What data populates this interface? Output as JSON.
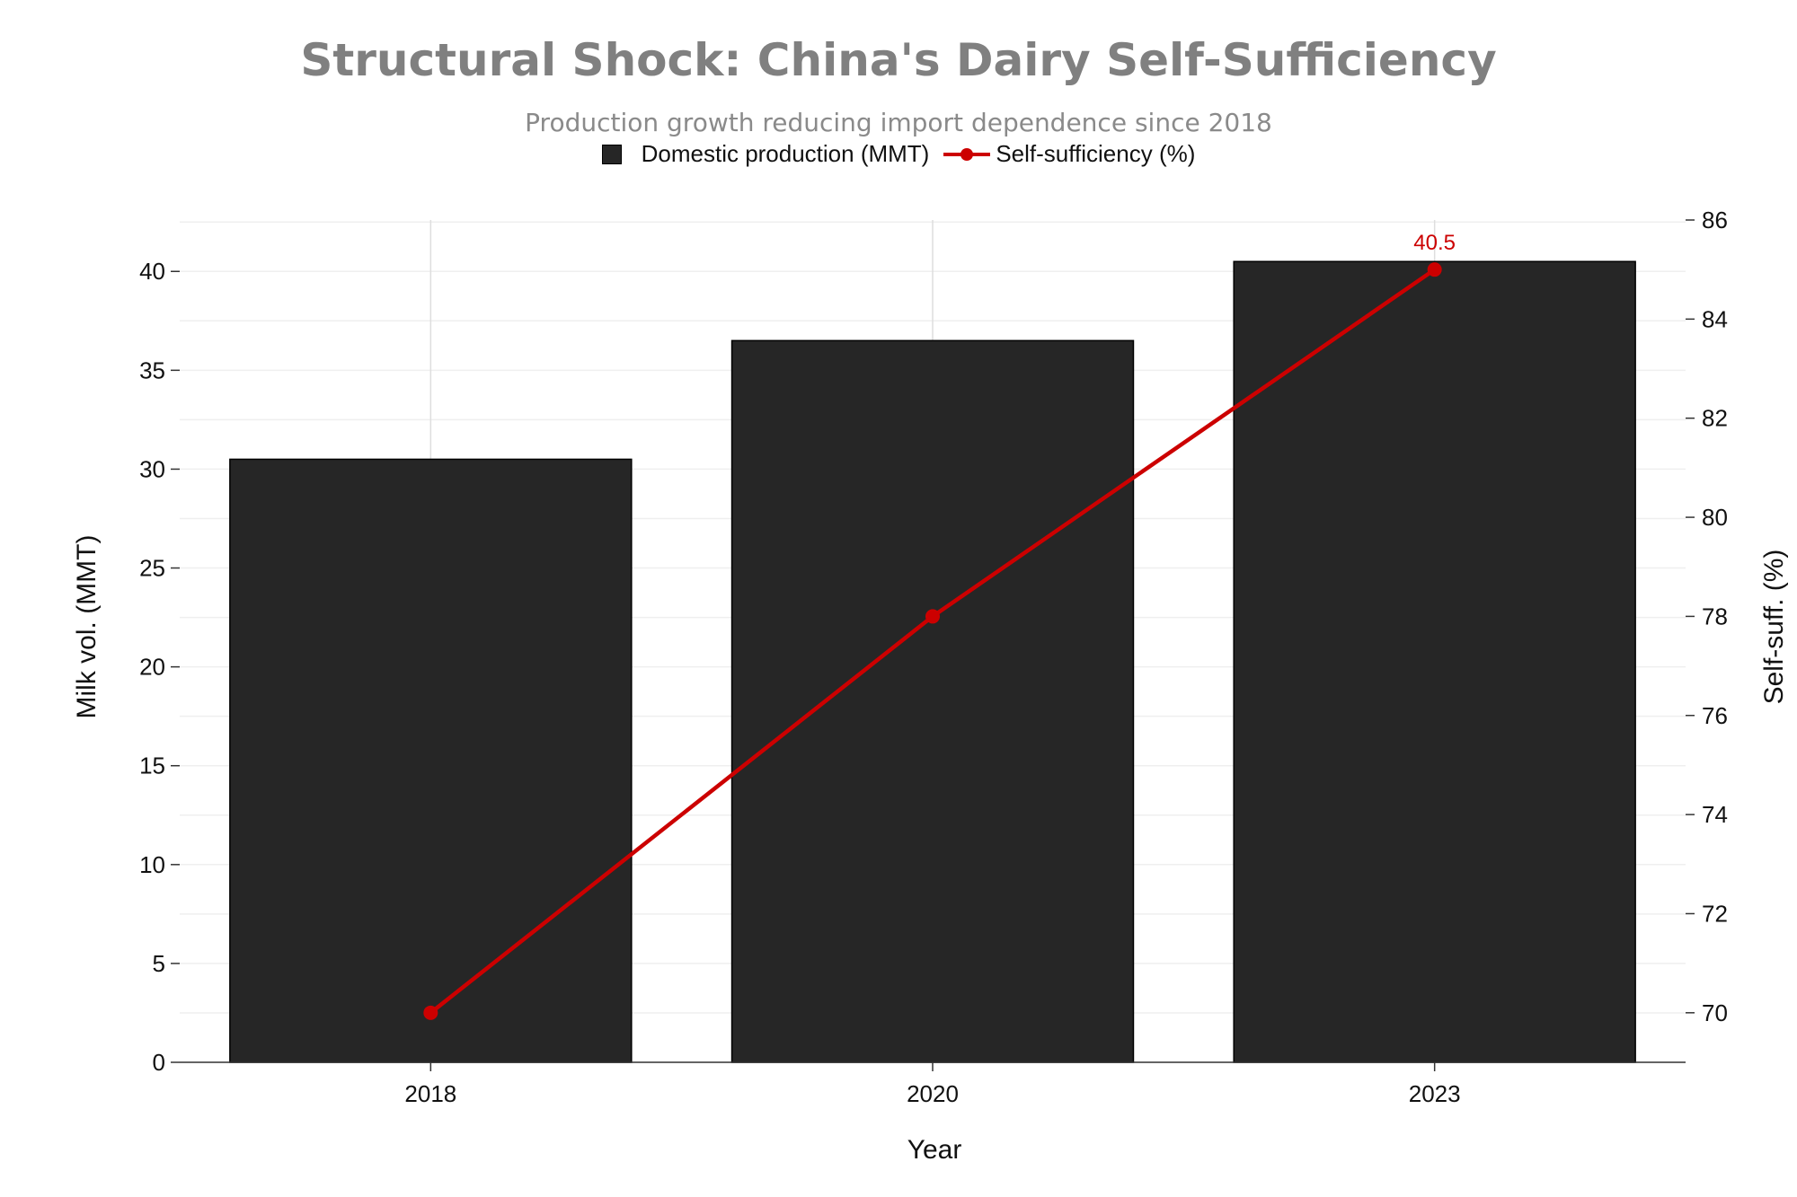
{
  "chart_data": {
    "type": "bar",
    "title": "Structural Shock: China's Dairy Self-Sufficiency",
    "subtitle": "Production growth reducing import dependence since 2018",
    "xlabel": "Year",
    "ylabel": "Milk vol. (MMT)",
    "y2label": "Self-suff. (%)",
    "categories": [
      "2018",
      "2020",
      "2023"
    ],
    "ylim": [
      0,
      42.6
    ],
    "y2lim": [
      69,
      86
    ],
    "yticks": [
      0,
      5,
      10,
      15,
      20,
      25,
      30,
      35,
      40
    ],
    "y2ticks": [
      70,
      72,
      74,
      76,
      78,
      80,
      82,
      84,
      86
    ],
    "grid": true,
    "legend_position": "top-center",
    "series": [
      {
        "name": "Domestic production (MMT)",
        "type": "bar",
        "axis": "left",
        "color": "#262626",
        "values": [
          30.5,
          36.5,
          40.5
        ]
      },
      {
        "name": "Self-sufficiency (%)",
        "type": "line",
        "axis": "right",
        "color": "#cc0000",
        "values": [
          70,
          78,
          85
        ]
      }
    ],
    "annotations": [
      {
        "category": "2023",
        "text": "40.5"
      }
    ]
  }
}
